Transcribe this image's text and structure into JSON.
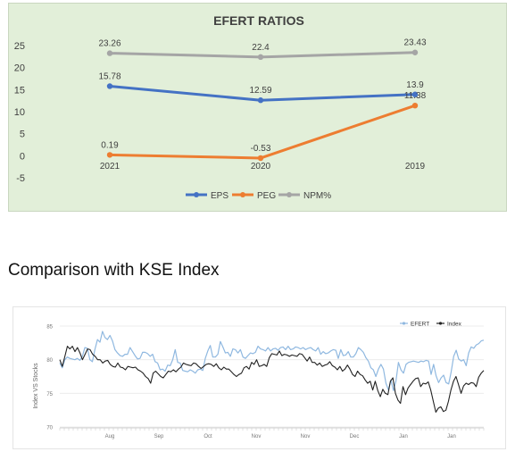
{
  "section_heading": "Comparison with KSE Index",
  "chart_data": [
    {
      "type": "line",
      "title": "EFERT RATIOS",
      "categories": [
        "2021",
        "2020",
        "2019"
      ],
      "series": [
        {
          "name": "EPS",
          "values": [
            15.78,
            12.59,
            13.9
          ],
          "color": "#4472c4"
        },
        {
          "name": "PEG",
          "values": [
            0.19,
            -0.53,
            11.38
          ],
          "color": "#ed7d31"
        },
        {
          "name": "NPM%",
          "values": [
            23.26,
            22.4,
            23.43
          ],
          "color": "#a5a5a5"
        }
      ],
      "data_labels": true,
      "ylim": [
        -5,
        25
      ],
      "yticks": [
        -5,
        0,
        5,
        10,
        15,
        20,
        25
      ],
      "grid": false,
      "legend": "bottom",
      "background": "#e2efd9"
    },
    {
      "type": "line",
      "title": "",
      "ylabel": "Index VS Stocks",
      "ylim": [
        70,
        85
      ],
      "yticks": [
        70,
        75,
        80,
        85
      ],
      "x_tick_labels": [
        "Aug",
        "Sep",
        "Oct",
        "Nov",
        "Nov",
        "Dec",
        "Jan",
        "Jan"
      ],
      "grid": true,
      "legend": "top-right",
      "series": [
        {
          "name": "EFERT",
          "color": "#8fb8e0",
          "values": [
            79.5,
            78.8,
            80.0,
            80.4,
            80.2,
            80.1,
            80.0,
            80.2,
            79.9,
            80.5,
            81.8,
            81.7,
            80.0,
            79.7,
            81.5,
            83.0,
            82.6,
            84.2,
            83.3,
            83.0,
            83.6,
            82.8,
            81.5,
            81.0,
            80.6,
            80.5,
            80.8,
            80.8,
            81.8,
            81.2,
            80.6,
            80.1,
            80.2,
            81.1,
            81.1,
            80.9,
            80.5,
            80.8,
            79.7,
            79.5,
            78.5,
            78.6,
            78.3,
            79.2,
            79.1,
            80.0,
            81.5,
            79.6,
            79.5,
            78.4,
            78.3,
            78.2,
            78.5,
            78.3,
            78.0,
            78.5,
            78.6,
            78.4,
            80.2,
            81.3,
            82.1,
            80.4,
            80.4,
            80.8,
            82.7,
            81.9,
            81.0,
            81.1,
            80.5,
            81.6,
            81.5,
            81.0,
            81.5,
            80.4,
            80.2,
            80.6,
            81.0,
            80.9,
            81.1,
            82.0,
            81.6,
            81.5,
            81.3,
            81.8,
            81.3,
            81.6,
            81.7,
            81.4,
            81.8,
            81.9,
            81.5,
            82.0,
            81.5,
            81.6,
            81.9,
            81.8,
            81.6,
            81.8,
            81.5,
            81.7,
            81.8,
            81.5,
            81.3,
            81.8,
            80.8,
            81.2,
            80.9,
            81.0,
            81.3,
            81.5,
            81.4,
            80.2,
            81.5,
            80.6,
            80.7,
            81.2,
            80.4,
            80.4,
            80.9,
            81.8,
            81.5,
            81.1,
            80.3,
            79.8,
            78.8,
            78.5,
            77.5,
            78.6,
            79.3,
            78.6,
            76.5,
            75.5,
            77.0,
            75.4,
            76.8,
            79.6,
            78.5,
            78.0,
            79.3,
            79.6,
            79.7,
            79.8,
            79.7,
            79.6,
            79.8,
            79.7,
            79.9,
            79.8,
            77.8,
            79.3,
            77.6,
            76.6,
            77.3,
            77.7,
            76.6,
            76.4,
            78.2,
            80.5,
            81.4,
            80.1,
            79.8,
            80.0,
            79.1,
            81.0,
            81.9,
            81.7,
            82.2,
            82.4,
            82.8,
            82.9
          ]
        },
        {
          "name": "Index",
          "color": "#222222",
          "values": [
            80.0,
            79.0,
            80.5,
            82.0,
            81.6,
            82.0,
            81.2,
            81.8,
            81.0,
            80.0,
            80.8,
            81.6,
            81.5,
            80.8,
            80.5,
            80.0,
            80.0,
            79.5,
            79.8,
            79.9,
            79.3,
            79.0,
            78.9,
            79.5,
            78.9,
            78.8,
            78.5,
            79.0,
            78.9,
            78.8,
            78.9,
            78.5,
            78.3,
            78.0,
            77.5,
            77.2,
            76.5,
            78.0,
            78.3,
            77.9,
            77.5,
            77.3,
            77.8,
            78.3,
            78.2,
            78.5,
            78.2,
            78.6,
            78.9,
            79.5,
            79.3,
            79.2,
            79.1,
            79.5,
            79.4,
            79.0,
            78.7,
            79.0,
            79.3,
            79.4,
            79.3,
            79.0,
            79.4,
            78.8,
            78.5,
            78.9,
            78.6,
            78.6,
            78.2,
            77.8,
            77.5,
            77.8,
            78.0,
            78.8,
            79.0,
            78.6,
            79.6,
            79.3,
            80.0,
            79.0,
            79.1,
            79.3,
            79.0,
            80.3,
            80.9,
            80.8,
            80.7,
            81.3,
            80.6,
            80.8,
            80.7,
            80.5,
            80.7,
            80.6,
            80.5,
            80.9,
            80.8,
            80.3,
            79.8,
            80.4,
            79.6,
            79.6,
            79.2,
            79.5,
            79.0,
            79.2,
            79.3,
            79.7,
            79.1,
            78.9,
            78.5,
            79.0,
            78.3,
            78.6,
            79.2,
            78.6,
            77.8,
            77.5,
            78.3,
            77.8,
            77.6,
            77.0,
            76.5,
            76.8,
            75.5,
            76.8,
            75.4,
            74.5,
            75.6,
            75.0,
            74.8,
            76.8,
            77.3,
            75.0,
            74.0,
            73.5,
            76.0,
            74.8,
            75.8,
            76.3,
            76.8,
            77.2,
            77.3,
            76.0,
            76.5,
            76.4,
            76.7,
            75.5,
            73.8,
            72.2,
            72.8,
            73.0,
            72.3,
            72.5,
            73.8,
            75.5,
            76.8,
            77.5,
            76.3,
            75.0,
            76.1,
            76.5,
            76.3,
            76.6,
            76.5,
            76.0,
            77.4,
            78.0,
            78.4
          ]
        }
      ]
    }
  ]
}
